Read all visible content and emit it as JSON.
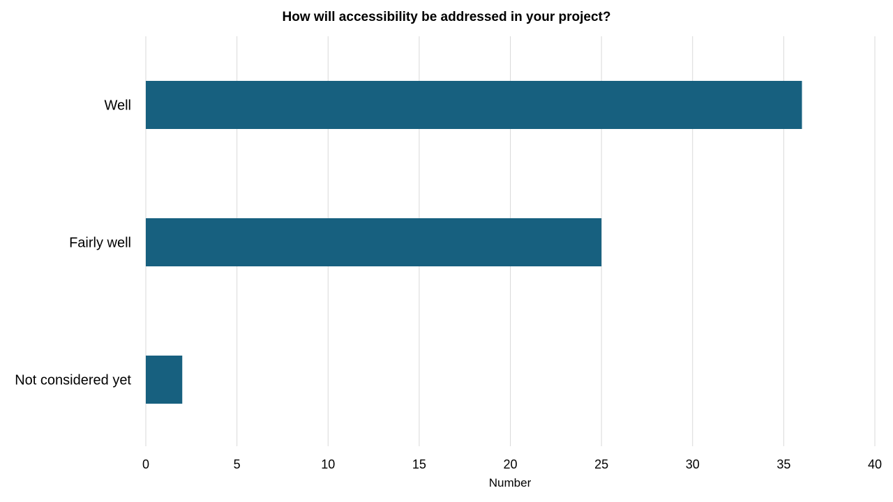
{
  "chart_data": {
    "type": "bar",
    "orientation": "horizontal",
    "title": "How will accessibility be addressed in your project?",
    "xlabel": "Number",
    "ylabel": "",
    "categories": [
      "Well",
      "Fairly well",
      "Not considered yet"
    ],
    "values": [
      36,
      25,
      2
    ],
    "xlim": [
      0,
      40
    ],
    "ticks": [
      0,
      5,
      10,
      15,
      20,
      25,
      30,
      35,
      40
    ],
    "grid": "vertical",
    "legend": "none",
    "bar_color": "#17607f"
  }
}
